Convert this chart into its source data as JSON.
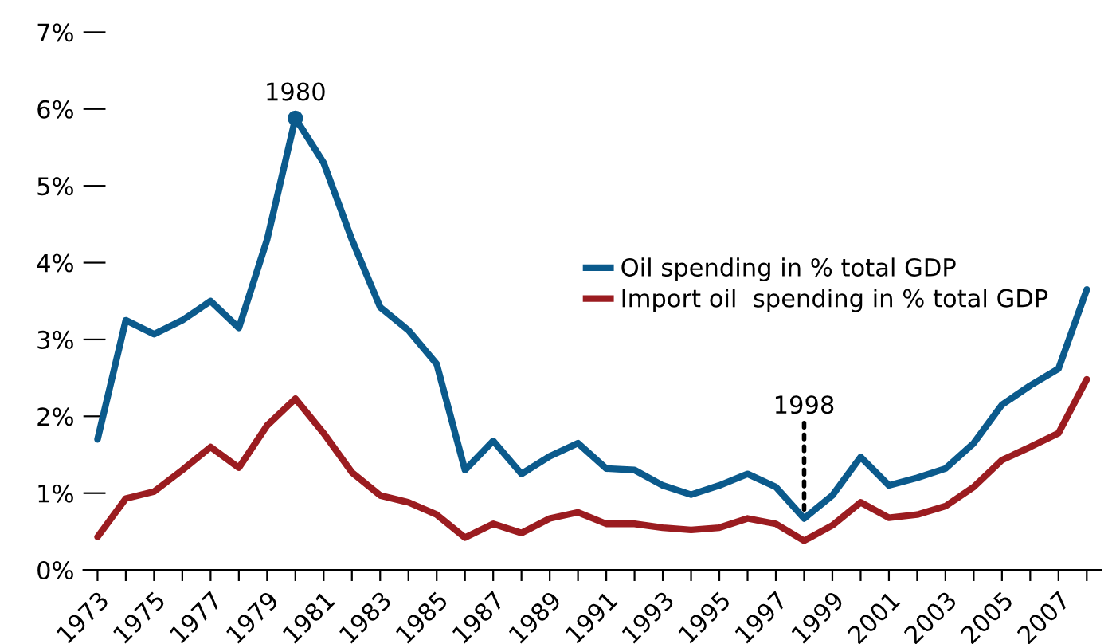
{
  "chart_data": {
    "type": "line",
    "x": [
      1973,
      1974,
      1975,
      1976,
      1977,
      1978,
      1979,
      1980,
      1981,
      1982,
      1983,
      1984,
      1985,
      1986,
      1987,
      1988,
      1989,
      1990,
      1991,
      1992,
      1993,
      1994,
      1995,
      1996,
      1997,
      1998,
      1999,
      2000,
      2001,
      2002,
      2003,
      2004,
      2005,
      2006,
      2007,
      2008
    ],
    "series": [
      {
        "name": "Oil spending in % total GDP",
        "color": "#0b5a8c",
        "values": [
          1.7,
          3.25,
          3.07,
          3.25,
          3.5,
          3.15,
          4.3,
          5.88,
          5.3,
          4.3,
          3.42,
          3.12,
          2.68,
          1.3,
          1.68,
          1.25,
          1.48,
          1.65,
          1.32,
          1.3,
          1.1,
          0.98,
          1.1,
          1.25,
          1.08,
          0.67,
          0.97,
          1.47,
          1.1,
          1.2,
          1.32,
          1.65,
          2.15,
          2.4,
          2.62,
          3.65
        ]
      },
      {
        "name": "Import oil  spending in % total GDP",
        "color": "#9b1c20",
        "values": [
          0.43,
          0.93,
          1.02,
          1.3,
          1.6,
          1.33,
          1.88,
          2.23,
          1.78,
          1.27,
          0.97,
          0.88,
          0.72,
          0.42,
          0.6,
          0.48,
          0.67,
          0.75,
          0.6,
          0.6,
          0.55,
          0.52,
          0.55,
          0.67,
          0.6,
          0.38,
          0.58,
          0.88,
          0.68,
          0.72,
          0.83,
          1.08,
          1.43,
          1.6,
          1.78,
          2.48
        ]
      }
    ],
    "annotations": [
      {
        "text": "1980",
        "x": 1980,
        "y": 5.88
      },
      {
        "text": "1998",
        "x": 1998,
        "y": 0.67
      }
    ],
    "xlim": [
      1972.5,
      2008.5
    ],
    "xticks": [
      {
        "value": 1973,
        "label": "1973"
      },
      {
        "value": 1974,
        "label": null
      },
      {
        "value": 1975,
        "label": "1975"
      },
      {
        "value": 1976,
        "label": null
      },
      {
        "value": 1977,
        "label": "1977"
      },
      {
        "value": 1978,
        "label": null
      },
      {
        "value": 1979,
        "label": "1979"
      },
      {
        "value": 1980,
        "label": null
      },
      {
        "value": 1981,
        "label": "1981"
      },
      {
        "value": 1982,
        "label": null
      },
      {
        "value": 1983,
        "label": "1983"
      },
      {
        "value": 1984,
        "label": null
      },
      {
        "value": 1985,
        "label": "1985"
      },
      {
        "value": 1986,
        "label": null
      },
      {
        "value": 1987,
        "label": "1987"
      },
      {
        "value": 1988,
        "label": null
      },
      {
        "value": 1989,
        "label": "1989"
      },
      {
        "value": 1990,
        "label": null
      },
      {
        "value": 1991,
        "label": "1991"
      },
      {
        "value": 1992,
        "label": null
      },
      {
        "value": 1993,
        "label": "1993"
      },
      {
        "value": 1994,
        "label": null
      },
      {
        "value": 1995,
        "label": "1995"
      },
      {
        "value": 1996,
        "label": null
      },
      {
        "value": 1997,
        "label": "1997"
      },
      {
        "value": 1998,
        "label": null
      },
      {
        "value": 1999,
        "label": "1999"
      },
      {
        "value": 2000,
        "label": null
      },
      {
        "value": 2001,
        "label": "2001"
      },
      {
        "value": 2002,
        "label": null
      },
      {
        "value": 2003,
        "label": "2003"
      },
      {
        "value": 2004,
        "label": null
      },
      {
        "value": 2005,
        "label": "2005"
      },
      {
        "value": 2006,
        "label": null
      },
      {
        "value": 2007,
        "label": "2007"
      },
      {
        "value": 2008,
        "label": null
      }
    ],
    "ylim": [
      0,
      7
    ],
    "yticks": [
      {
        "value": 0,
        "label": "0%"
      },
      {
        "value": 1,
        "label": "1%"
      },
      {
        "value": 2,
        "label": "2%"
      },
      {
        "value": 3,
        "label": "3%"
      },
      {
        "value": 4,
        "label": "4%"
      },
      {
        "value": 5,
        "label": "5%"
      },
      {
        "value": 6,
        "label": "6%"
      },
      {
        "value": 7,
        "label": "7%"
      }
    ],
    "grid": false,
    "legend": "right",
    "line_style": "solid"
  }
}
